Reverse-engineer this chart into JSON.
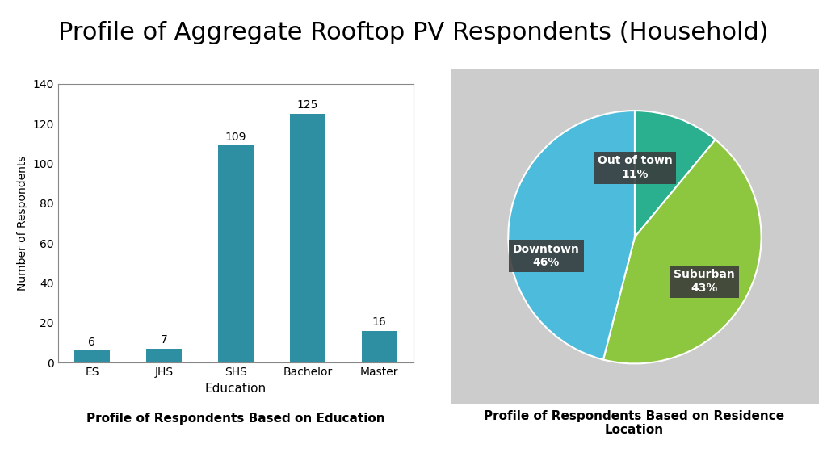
{
  "title": "Profile of Aggregate Rooftop PV Respondents (Household)",
  "title_fontsize": 22,
  "bar_categories": [
    "ES",
    "JHS",
    "SHS",
    "Bachelor",
    "Master"
  ],
  "bar_values": [
    6,
    7,
    109,
    125,
    16
  ],
  "bar_color": "#2E8FA3",
  "bar_xlabel": "Education",
  "bar_ylabel": "Number of Respondents",
  "bar_ylim": [
    0,
    140
  ],
  "bar_yticks": [
    0,
    20,
    40,
    60,
    80,
    100,
    120,
    140
  ],
  "bar_subtitle": "Profile of Respondents Based on Education",
  "pie_labels": [
    "Out of town",
    "Suburban",
    "Downtown"
  ],
  "pie_values": [
    11,
    43,
    46
  ],
  "pie_colors": [
    "#2AAF8F",
    "#8DC63F",
    "#4DBBDB"
  ],
  "pie_subtitle": "Profile of Respondents Based on Residence\nLocation",
  "pie_bg_color": "#CCCCCC",
  "label_box_color": "#3A3A3A",
  "label_text_color": "#FFFFFF",
  "bg_color": "#FFFFFF"
}
